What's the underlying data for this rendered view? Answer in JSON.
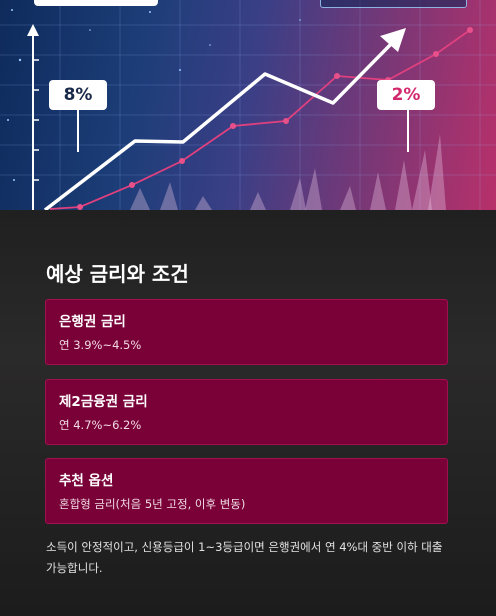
{
  "hero": {
    "left_rate_label": "8%",
    "right_rate_label": "2%"
  },
  "section": {
    "title": "예상 금리와 조건"
  },
  "cards": [
    {
      "title": "은행권 금리",
      "value": "연 3.9%~4.5%"
    },
    {
      "title": "제2금융권 금리",
      "value": "연 4.7%~6.2%"
    },
    {
      "title": "추천 옵션",
      "value": "혼합형 금리(처음 5년 고정, 이후 변동)"
    }
  ],
  "note": "소득이 안정적이고, 신용등급이 1~3등급이면 은행권에서 연 4%대 중반 이하 대출 가능합니다.",
  "colors": {
    "card_bg": "#7a0038",
    "card_border": "#a0104f",
    "accent_pink": "#e0407e",
    "trend_white": "#ffffff"
  }
}
